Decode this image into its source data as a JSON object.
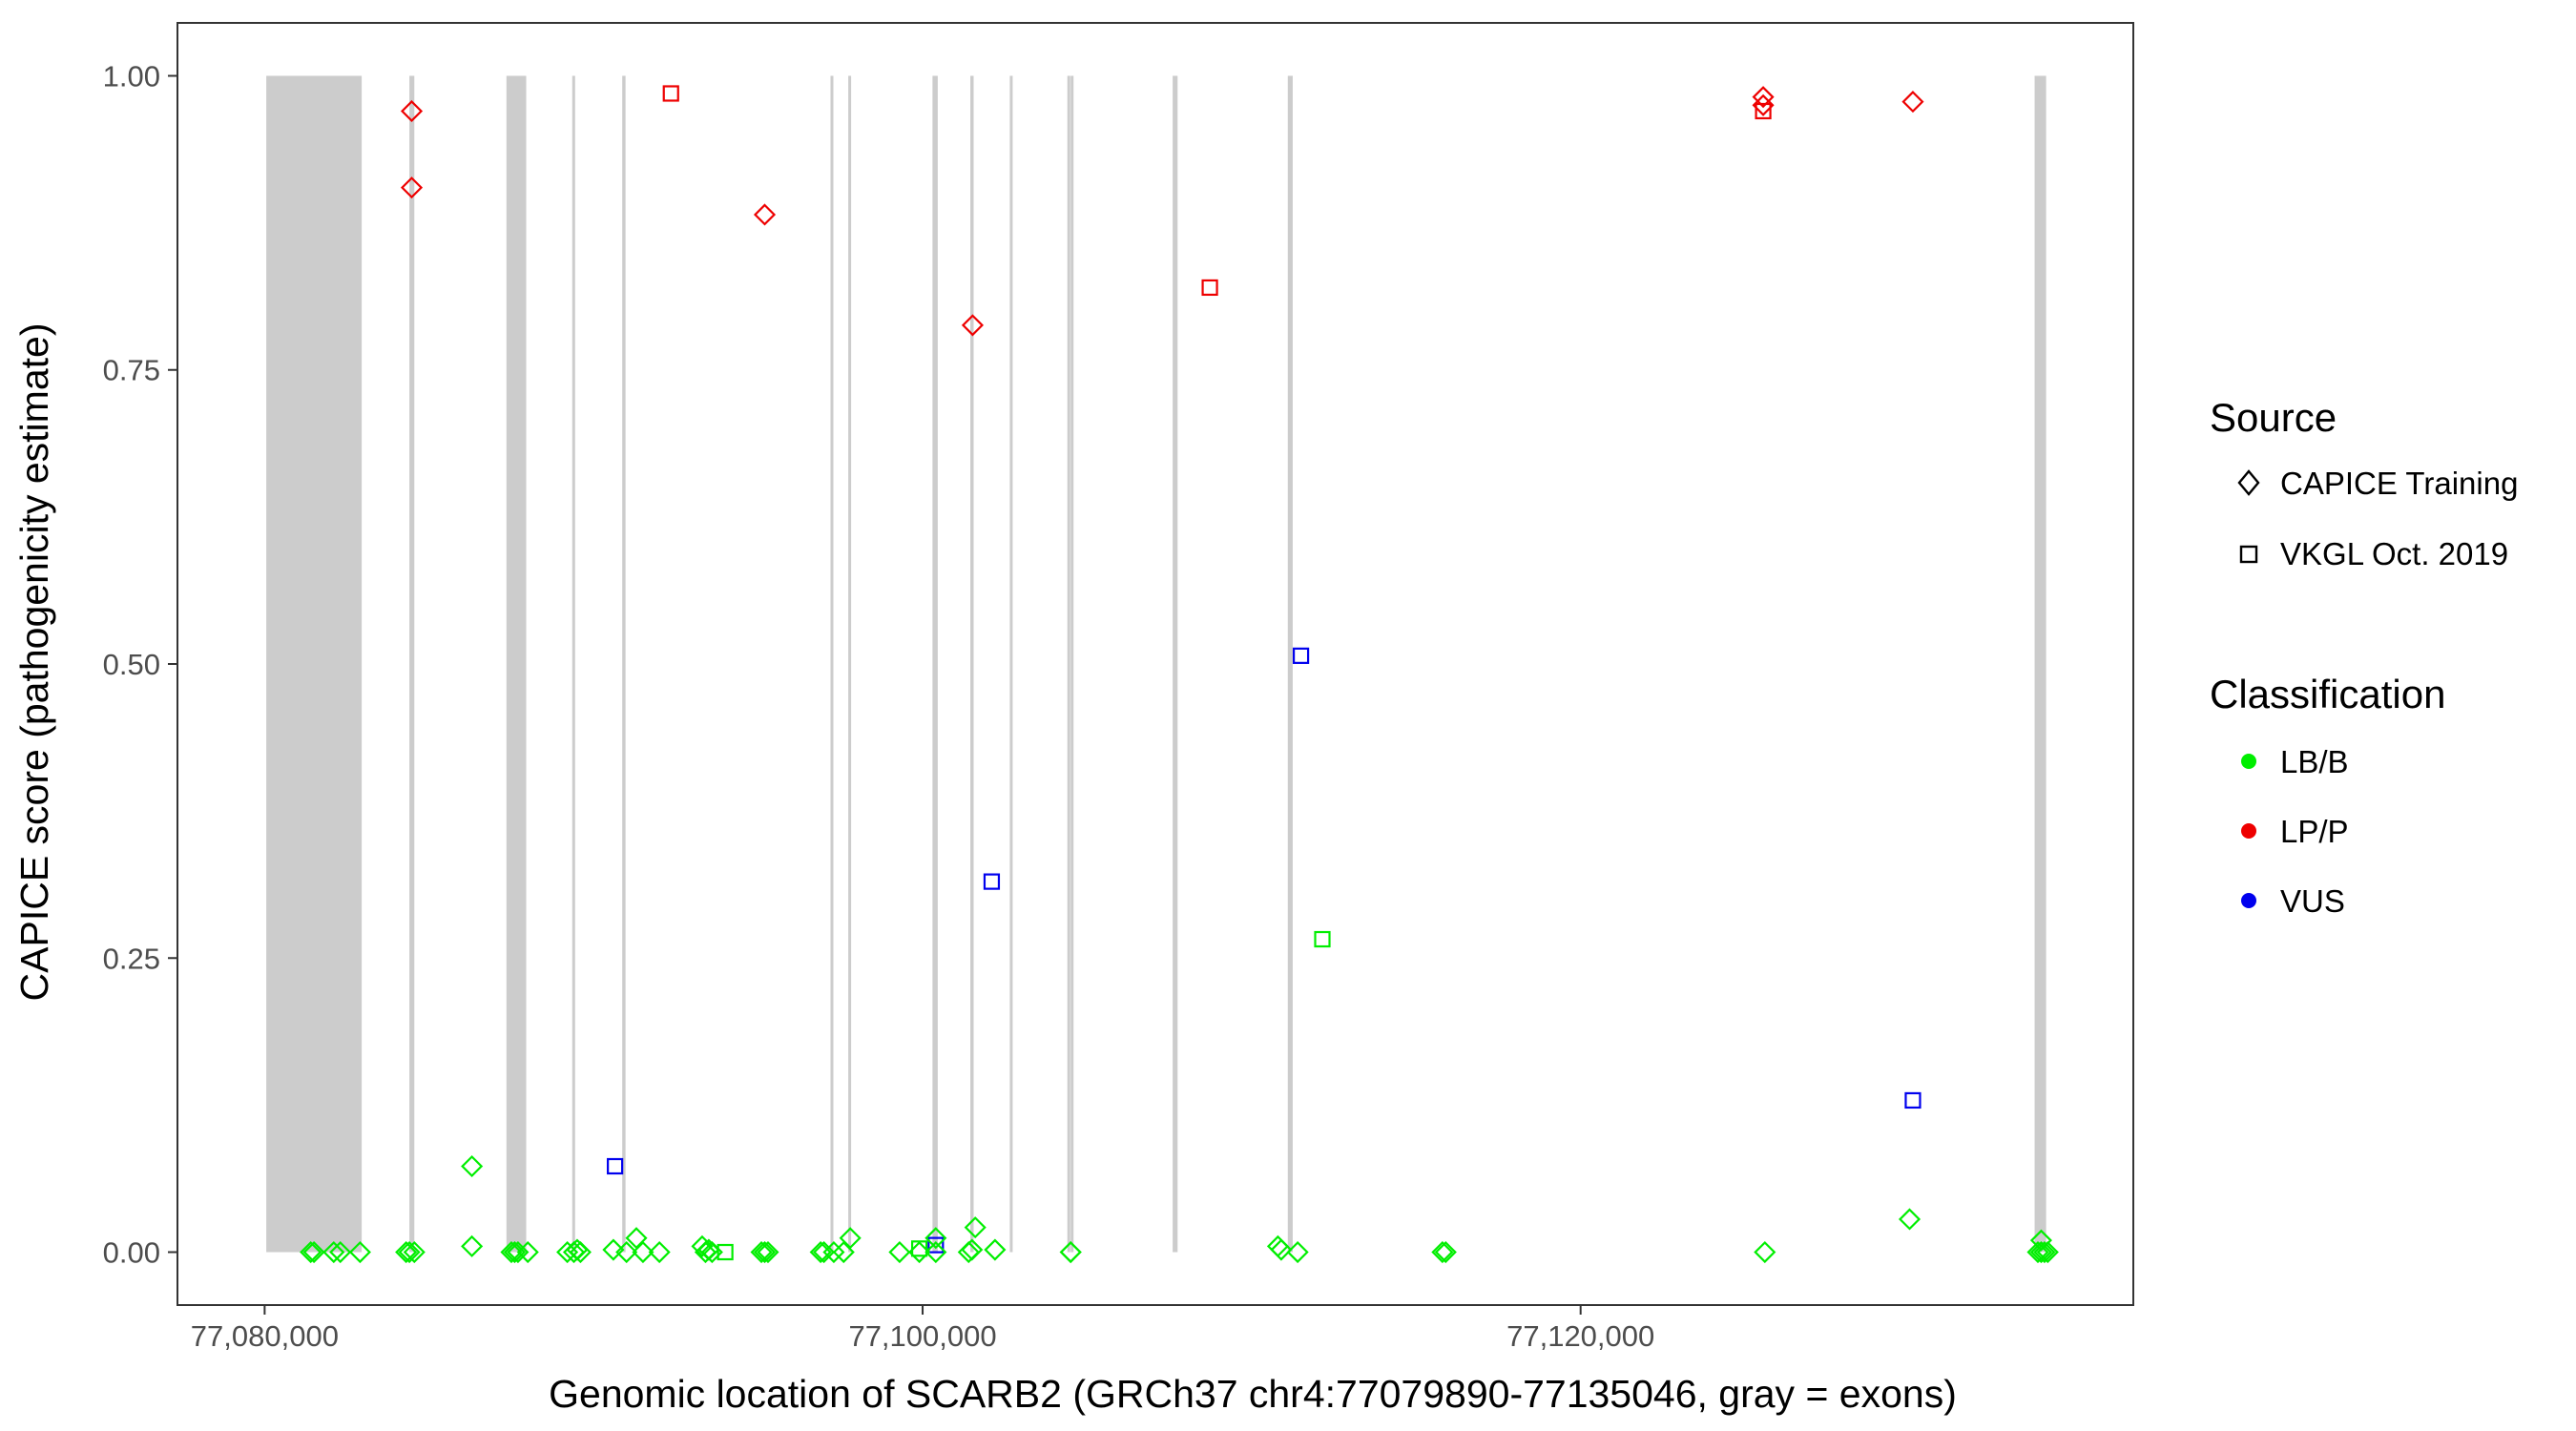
{
  "chart_data": {
    "type": "scatter",
    "xlabel": "Genomic location of SCARB2 (GRCh37 chr4:77079890-77135046, gray = exons)",
    "ylabel": "CAPICE score (pathogenicity estimate)",
    "xlim": [
      77077350,
      77136800
    ],
    "ylim": [
      -0.045,
      1.045
    ],
    "x_ticks": [
      77080000,
      77100000,
      77120000
    ],
    "x_tick_labels": [
      "77,080,000",
      "77,100,000",
      "77,120,000"
    ],
    "y_ticks": [
      0,
      0.25,
      0.5,
      0.75,
      1.0
    ],
    "y_tick_labels": [
      "0.00",
      "0.25",
      "0.50",
      "0.75",
      "1.00"
    ],
    "grid": false,
    "exons": [
      [
        77080050,
        77082950
      ],
      [
        77084400,
        77084550
      ],
      [
        77087350,
        77087950
      ],
      [
        77089350,
        77089420
      ],
      [
        77090870,
        77090970
      ],
      [
        77107600,
        77107750
      ],
      [
        77097200,
        77097270
      ],
      [
        77097740,
        77097810
      ],
      [
        77100300,
        77100460
      ],
      [
        77101450,
        77101550
      ],
      [
        77102650,
        77102700
      ],
      [
        77104400,
        77104450
      ],
      [
        77104500,
        77104530
      ],
      [
        77111100,
        77111250
      ],
      [
        77133800,
        77134150
      ]
    ],
    "legends": {
      "source": {
        "title": "Source",
        "position": "right",
        "entries": [
          {
            "label": "CAPICE Training",
            "shape": "diamond"
          },
          {
            "label": "VKGL Oct. 2019",
            "shape": "square"
          }
        ]
      },
      "classification": {
        "title": "Classification",
        "position": "right",
        "entries": [
          {
            "label": "LB/B",
            "color": "#00ee00"
          },
          {
            "label": "LP/P",
            "color": "#ee0000"
          },
          {
            "label": "VUS",
            "color": "#0000ee"
          }
        ]
      }
    },
    "colors": {
      "LB/B": "#00ee00",
      "LP/P": "#ee0000",
      "VUS": "#0000ee",
      "exon": "#cccccc"
    },
    "series": [
      {
        "classification": "LP/P",
        "source": "CAPICE Training",
        "points": [
          [
            77084470,
            0.97
          ],
          [
            77084470,
            0.905
          ],
          [
            77095200,
            0.882
          ],
          [
            77101520,
            0.788
          ],
          [
            77125550,
            0.982
          ],
          [
            77125550,
            0.975
          ],
          [
            77130100,
            0.978
          ]
        ]
      },
      {
        "classification": "LP/P",
        "source": "VKGL Oct. 2019",
        "points": [
          [
            77092350,
            0.985
          ],
          [
            77108730,
            0.82
          ],
          [
            77125550,
            0.97
          ]
        ]
      },
      {
        "classification": "VUS",
        "source": "VKGL Oct. 2019",
        "points": [
          [
            77111500,
            0.507
          ],
          [
            77102100,
            0.315
          ],
          [
            77090650,
            0.073
          ],
          [
            77130100,
            0.129
          ],
          [
            77100400,
            0.006
          ]
        ]
      },
      {
        "classification": "LB/B",
        "source": "VKGL Oct. 2019",
        "points": [
          [
            77112150,
            0.266
          ],
          [
            77094000,
            0.0
          ],
          [
            77099900,
            0.003
          ]
        ]
      },
      {
        "classification": "LB/B",
        "source": "CAPICE Training",
        "points": [
          [
            77081400,
            0.0
          ],
          [
            77081500,
            0.0
          ],
          [
            77082100,
            0.0
          ],
          [
            77082300,
            0.0
          ],
          [
            77082900,
            0.0
          ],
          [
            77084300,
            0.0
          ],
          [
            77084400,
            0.0
          ],
          [
            77084550,
            0.0
          ],
          [
            77086300,
            0.073
          ],
          [
            77086300,
            0.005
          ],
          [
            77087500,
            0.0
          ],
          [
            77087600,
            0.0
          ],
          [
            77087700,
            0.0
          ],
          [
            77088000,
            0.0
          ],
          [
            77089200,
            0.0
          ],
          [
            77089400,
            0.0
          ],
          [
            77089500,
            0.002
          ],
          [
            77089600,
            0.0
          ],
          [
            77090600,
            0.002
          ],
          [
            77091000,
            0.0
          ],
          [
            77091300,
            0.012
          ],
          [
            77091500,
            0.0
          ],
          [
            77092000,
            0.0
          ],
          [
            77093300,
            0.005
          ],
          [
            77093400,
            0.0
          ],
          [
            77093500,
            0.002
          ],
          [
            77093600,
            0.0
          ],
          [
            77095100,
            0.0
          ],
          [
            77095200,
            0.0
          ],
          [
            77095300,
            0.0
          ],
          [
            77096900,
            0.0
          ],
          [
            77097000,
            0.0
          ],
          [
            77097300,
            0.0
          ],
          [
            77097600,
            0.0
          ],
          [
            77097800,
            0.012
          ],
          [
            77099300,
            0.0
          ],
          [
            77099900,
            0.0
          ],
          [
            77100400,
            0.0
          ],
          [
            77100400,
            0.012
          ],
          [
            77101400,
            0.0
          ],
          [
            77101500,
            0.002
          ],
          [
            77101600,
            0.021
          ],
          [
            77102200,
            0.002
          ],
          [
            77104500,
            0.0
          ],
          [
            77104500,
            0.0
          ],
          [
            77110800,
            0.005
          ],
          [
            77110900,
            0.002
          ],
          [
            77111400,
            0.0
          ],
          [
            77115800,
            0.0
          ],
          [
            77115900,
            0.0
          ],
          [
            77125600,
            0.0
          ],
          [
            77130000,
            0.028
          ],
          [
            77133900,
            0.0
          ],
          [
            77134000,
            0.0
          ],
          [
            77134100,
            0.0
          ],
          [
            77134200,
            0.0
          ],
          [
            77134000,
            0.01
          ]
        ]
      }
    ]
  }
}
